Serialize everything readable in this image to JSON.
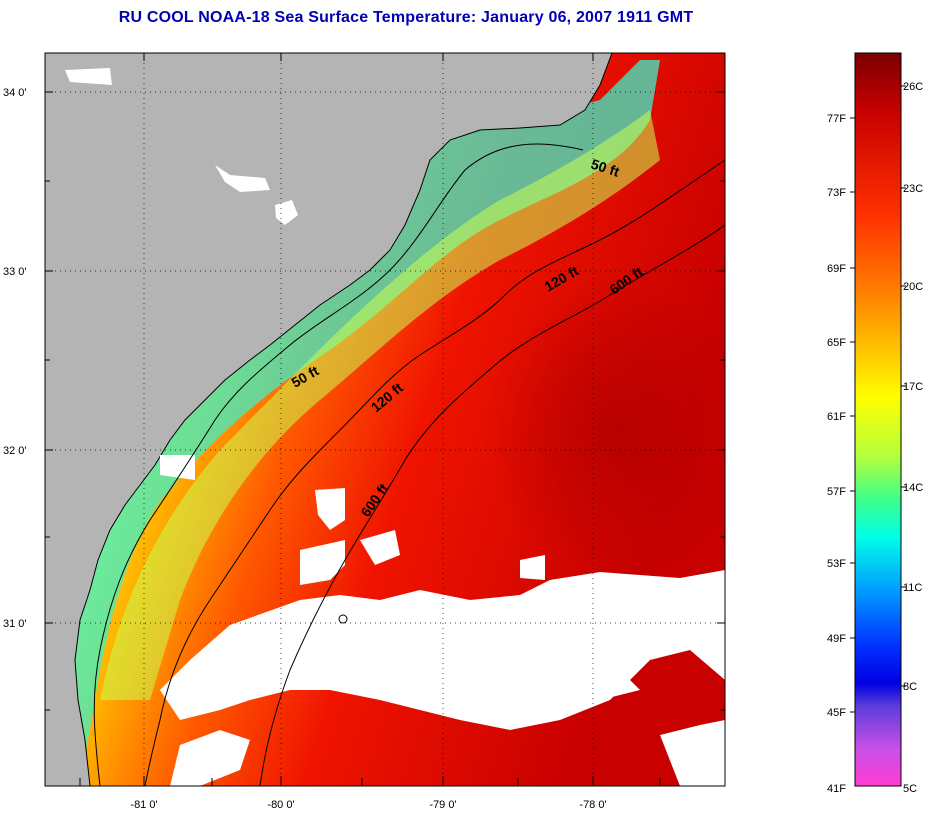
{
  "title": "RU COOL  NOAA-18  Sea Surface Temperature:  January 06, 2007 1911 GMT",
  "map": {
    "lat_ticks": [
      "34 0'",
      "33 0'",
      "32 0'",
      "31 0'"
    ],
    "lon_ticks": [
      "-81 0'",
      "-80 0'",
      "-79 0'",
      "-78 0'"
    ],
    "isobath_labels": [
      "50 ft",
      "50 ft",
      "120 ft",
      "120 ft",
      "600 ft",
      "600 ft"
    ],
    "land_color": "#b4b4b4",
    "cloud_color": "#ffffff"
  },
  "colorbar": {
    "fahrenheit_labels": [
      "77F",
      "73F",
      "69F",
      "65F",
      "61F",
      "57F",
      "53F",
      "49F",
      "45F",
      "41F"
    ],
    "celsius_labels": [
      "26C",
      "23C",
      "20C",
      "17C",
      "14C",
      "11C",
      "8C",
      "5C"
    ],
    "colors": [
      "#7a0000",
      "#c80000",
      "#ff3000",
      "#ff7a00",
      "#ffc800",
      "#ffff00",
      "#b4ff3c",
      "#3cff8c",
      "#00ffe6",
      "#00a0ff",
      "#0030ff",
      "#0000e0",
      "#8c28e6",
      "#ff3cd2"
    ]
  }
}
